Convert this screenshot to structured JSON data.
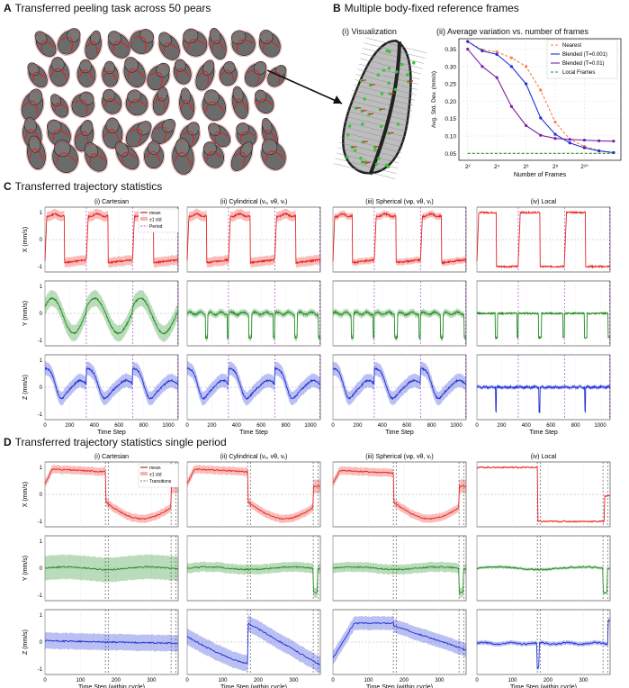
{
  "panel_a": {
    "letter": "A",
    "title": "Transferred peeling task across 50 pears",
    "pear_count": 50
  },
  "panel_b": {
    "letter": "B",
    "title": "Multiple body-fixed reference frames",
    "vis_title": "(i) Visualization",
    "chart_title": "(ii) Average variation vs. number of frames"
  },
  "panel_c": {
    "letter": "C",
    "title": "Transferred trajectory statistics",
    "col_titles": [
      "(i) Cartesian",
      "(ii) Cylindrical (vₓ, vθ, vᵣ)",
      "(iii) Spherical (vφ, vθ, vᵣ)",
      "(iv) Local"
    ],
    "row_labels": [
      "X (mm/s)",
      "Y (mm/s)",
      "Z (mm/s)"
    ],
    "xlabel": "Time Step",
    "xticks": [
      0,
      200,
      400,
      600,
      800,
      1000
    ],
    "yticks": [
      -1,
      0,
      1
    ],
    "legend": [
      "mean",
      "±1 std",
      "Period"
    ],
    "period_lines": [
      335,
      710,
      1075
    ]
  },
  "panel_d": {
    "letter": "D",
    "title": "Transferred trajectory statistics single period",
    "col_titles": [
      "(i) Cartesian",
      "(ii) Cylindrical (vₓ, vθ, vᵣ)",
      "(iii) Spherical (vφ, vθ, vᵣ)",
      "(iv) Local"
    ],
    "row_labels": [
      "X (mm/s)",
      "Y (mm/s)",
      "Z (mm/s)"
    ],
    "xlabel": "Time Step (within cycle)",
    "xticks": [
      0,
      100,
      200,
      300
    ],
    "yticks": [
      -1,
      0,
      1
    ],
    "legend": [
      "mean",
      "±1 std",
      "Transitions"
    ],
    "transition_lines": [
      170,
      178,
      355,
      368
    ]
  },
  "colors": {
    "x_series": "#e8231f",
    "y_series": "#1f8a1f",
    "z_series": "#1f2fd6",
    "nearest": "#ff7f3f",
    "blended_small": "#1f2fd6",
    "blended_large": "#7b1fa2",
    "local": "#2e8b2e",
    "period": "#9b2fc0"
  },
  "chart_data": [
    {
      "type": "line",
      "title": "(ii) Average variation vs. number of frames",
      "xlabel": "Number of Frames",
      "ylabel": "Avg. Std. Dev. (mm/s)",
      "x_scale": "log2",
      "xlim": [
        1.4,
        12.5
      ],
      "ylim": [
        0.03,
        0.38
      ],
      "xticks": [
        "2²",
        "2⁴",
        "2⁶",
        "2⁸",
        "2¹⁰"
      ],
      "yticks": [
        0.05,
        0.1,
        0.15,
        0.2,
        0.25,
        0.3,
        0.35
      ],
      "legend_position": "top-right",
      "x": [
        2,
        3,
        4,
        5,
        6,
        7,
        8,
        9,
        10,
        11,
        12
      ],
      "series": [
        {
          "name": "Nearest",
          "style": "dashed",
          "values": [
            0.372,
            0.348,
            0.342,
            0.325,
            0.3,
            0.232,
            0.14,
            0.09,
            0.07,
            0.058,
            0.052
          ]
        },
        {
          "name": "Blended (T=0.001)",
          "style": "solid",
          "values": [
            0.372,
            0.345,
            0.335,
            0.3,
            0.25,
            0.152,
            0.105,
            0.08,
            0.066,
            0.057,
            0.052
          ]
        },
        {
          "name": "Blended (T=0.01)",
          "style": "solid",
          "values": [
            0.35,
            0.3,
            0.268,
            0.185,
            0.13,
            0.102,
            0.093,
            0.09,
            0.088,
            0.086,
            0.085
          ]
        },
        {
          "name": "Local Frames",
          "style": "dashed",
          "values": [
            0.05,
            0.05,
            0.05,
            0.05,
            0.05,
            0.05,
            0.05,
            0.05,
            0.05,
            0.05,
            0.05
          ]
        }
      ]
    },
    {
      "type": "line",
      "title": "Transferred trajectory statistics (full trajectory)",
      "xlabel": "Time Step",
      "xlim": [
        0,
        1080
      ],
      "ylim": [
        -1.2,
        1.2
      ],
      "description_series": "mean ± 1 std for X, Y, Z velocity in Cartesian, Cylindrical, Spherical and Local frames; three periods separated at t = 335, 710, 1075"
    },
    {
      "type": "line",
      "title": "Transferred trajectory statistics single period",
      "xlabel": "Time Step (within cycle)",
      "xlim": [
        0,
        375
      ],
      "ylim": [
        -1.2,
        1.2
      ],
      "description_series": "single-cycle mean ± 1 std; transitions at t = 170, 178, 355, 368"
    }
  ]
}
